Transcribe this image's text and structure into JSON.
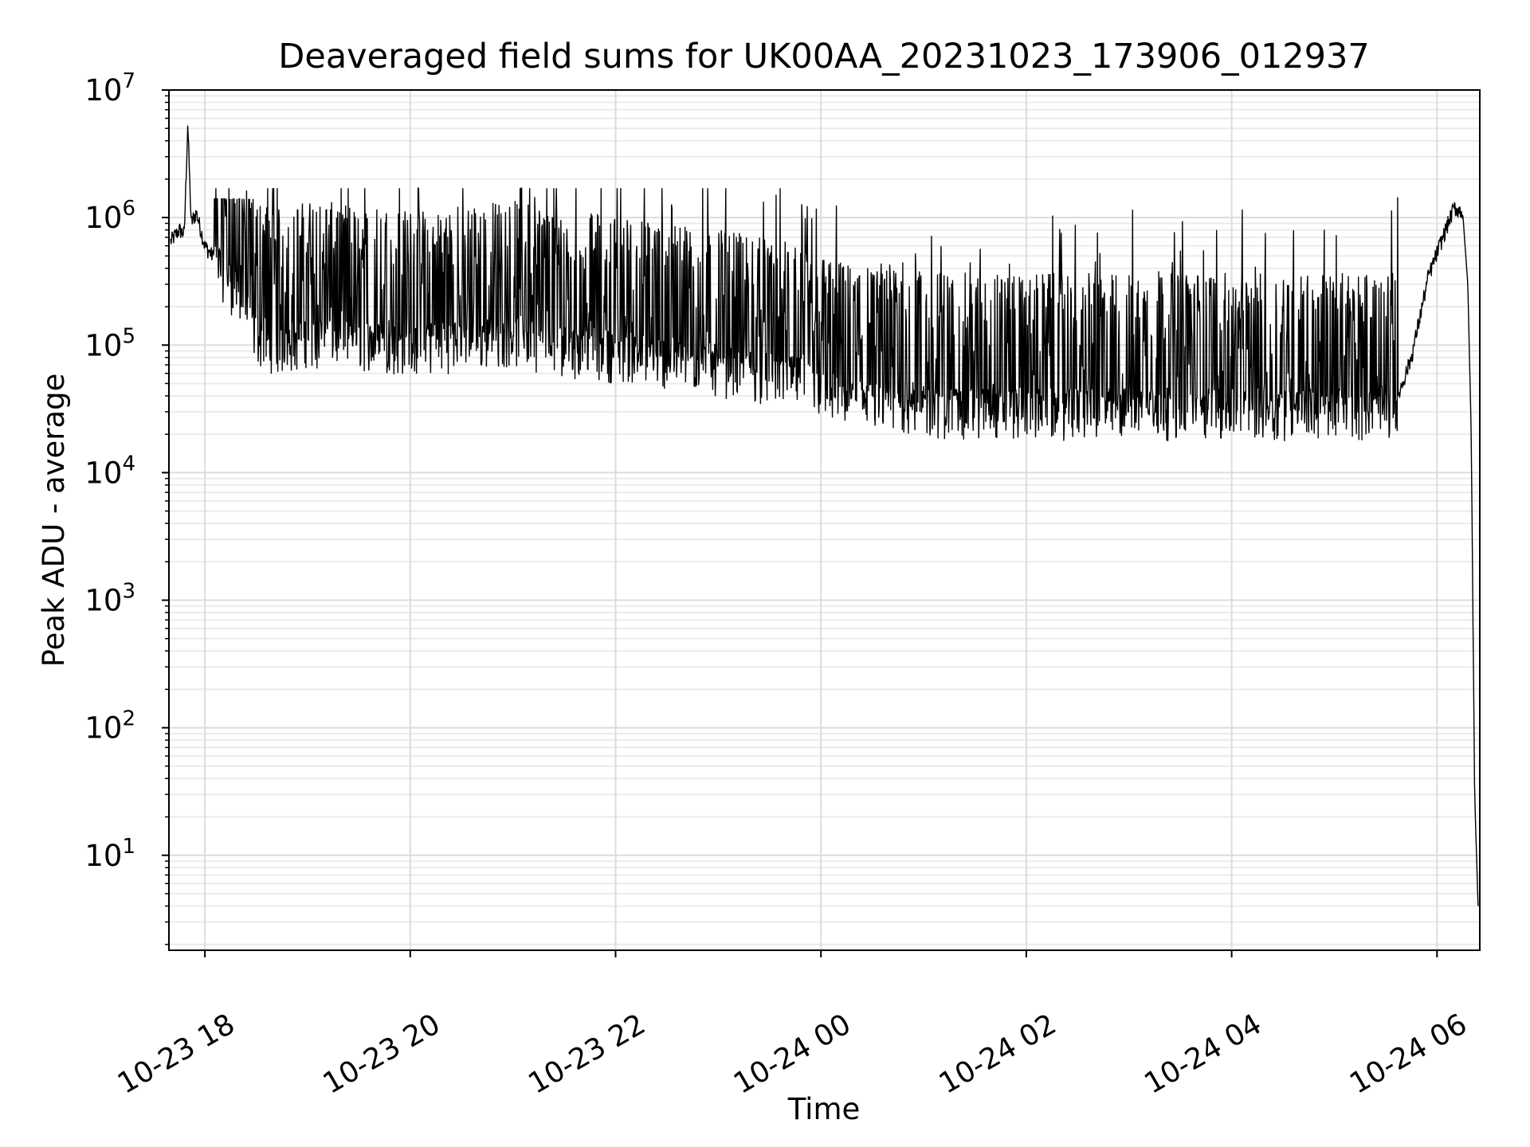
{
  "chart_data": {
    "type": "line",
    "title": "Deaveraged field sums for UK00AA_20231023_173906_012937",
    "xlabel": "Time",
    "ylabel": "Peak ADU - average",
    "yscale": "log",
    "ylim": [
      1.8,
      10000000
    ],
    "xlim": [
      "2023-10-23 17:39",
      "2023-10-24 06:25"
    ],
    "grid": "major and minor",
    "line_color": "#000000",
    "x_ticks": [
      {
        "value": "2023-10-23 18:00",
        "label": "10-23 18"
      },
      {
        "value": "2023-10-23 20:00",
        "label": "10-23 20"
      },
      {
        "value": "2023-10-23 22:00",
        "label": "10-23 22"
      },
      {
        "value": "2023-10-24 00:00",
        "label": "10-24 00"
      },
      {
        "value": "2023-10-24 02:00",
        "label": "10-24 02"
      },
      {
        "value": "2023-10-24 04:00",
        "label": "10-24 04"
      },
      {
        "value": "2023-10-24 06:00",
        "label": "10-24 06"
      }
    ],
    "y_ticks": [
      {
        "value": 10,
        "base": "10",
        "exp": "1"
      },
      {
        "value": 100,
        "base": "10",
        "exp": "2"
      },
      {
        "value": 1000,
        "base": "10",
        "exp": "3"
      },
      {
        "value": 10000,
        "base": "10",
        "exp": "4"
      },
      {
        "value": 100000,
        "base": "10",
        "exp": "5"
      },
      {
        "value": 1000000,
        "base": "10",
        "exp": "6"
      },
      {
        "value": 10000000,
        "base": "10",
        "exp": "7"
      }
    ],
    "series": [
      {
        "x": [
          "2023-10-23 17:40",
          "2023-10-23 17:45",
          "2023-10-23 17:48",
          "2023-10-23 17:50",
          "2023-10-23 17:52",
          "2023-10-23 17:55",
          "2023-10-23 18:00",
          "2023-10-23 18:10",
          "2023-10-23 18:20",
          "2023-10-23 18:30",
          "2023-10-23 18:45",
          "2023-10-23 19:00",
          "2023-10-23 19:30",
          "2023-10-23 20:00",
          "2023-10-23 20:30",
          "2023-10-23 21:00",
          "2023-10-23 21:30",
          "2023-10-23 22:00",
          "2023-10-23 22:30",
          "2023-10-23 23:00",
          "2023-10-23 23:30",
          "2023-10-23 23:50",
          "2023-10-24 00:00",
          "2023-10-24 00:15",
          "2023-10-24 00:30",
          "2023-10-24 01:00",
          "2023-10-24 01:30",
          "2023-10-24 02:00",
          "2023-10-24 03:00",
          "2023-10-24 04:00",
          "2023-10-24 05:00",
          "2023-10-24 05:35",
          "2023-10-24 05:45",
          "2023-10-24 05:55",
          "2023-10-24 06:05",
          "2023-10-24 06:10",
          "2023-10-24 06:15",
          "2023-10-24 06:18",
          "2023-10-24 06:20",
          "2023-10-24 06:22",
          "2023-10-24 06:24"
        ],
        "y": [
          650000,
          800000,
          750000,
          5500000,
          900000,
          1100000,
          600000,
          400000,
          250000,
          120000,
          100000,
          120000,
          110000,
          100000,
          110000,
          120000,
          100000,
          90000,
          80000,
          70000,
          60000,
          55000,
          45000,
          38000,
          35000,
          33000,
          32000,
          32000,
          32000,
          32000,
          32000,
          33000,
          80000,
          350000,
          800000,
          1200000,
          1100000,
          300000,
          20000,
          30,
          4
        ]
      }
    ]
  }
}
